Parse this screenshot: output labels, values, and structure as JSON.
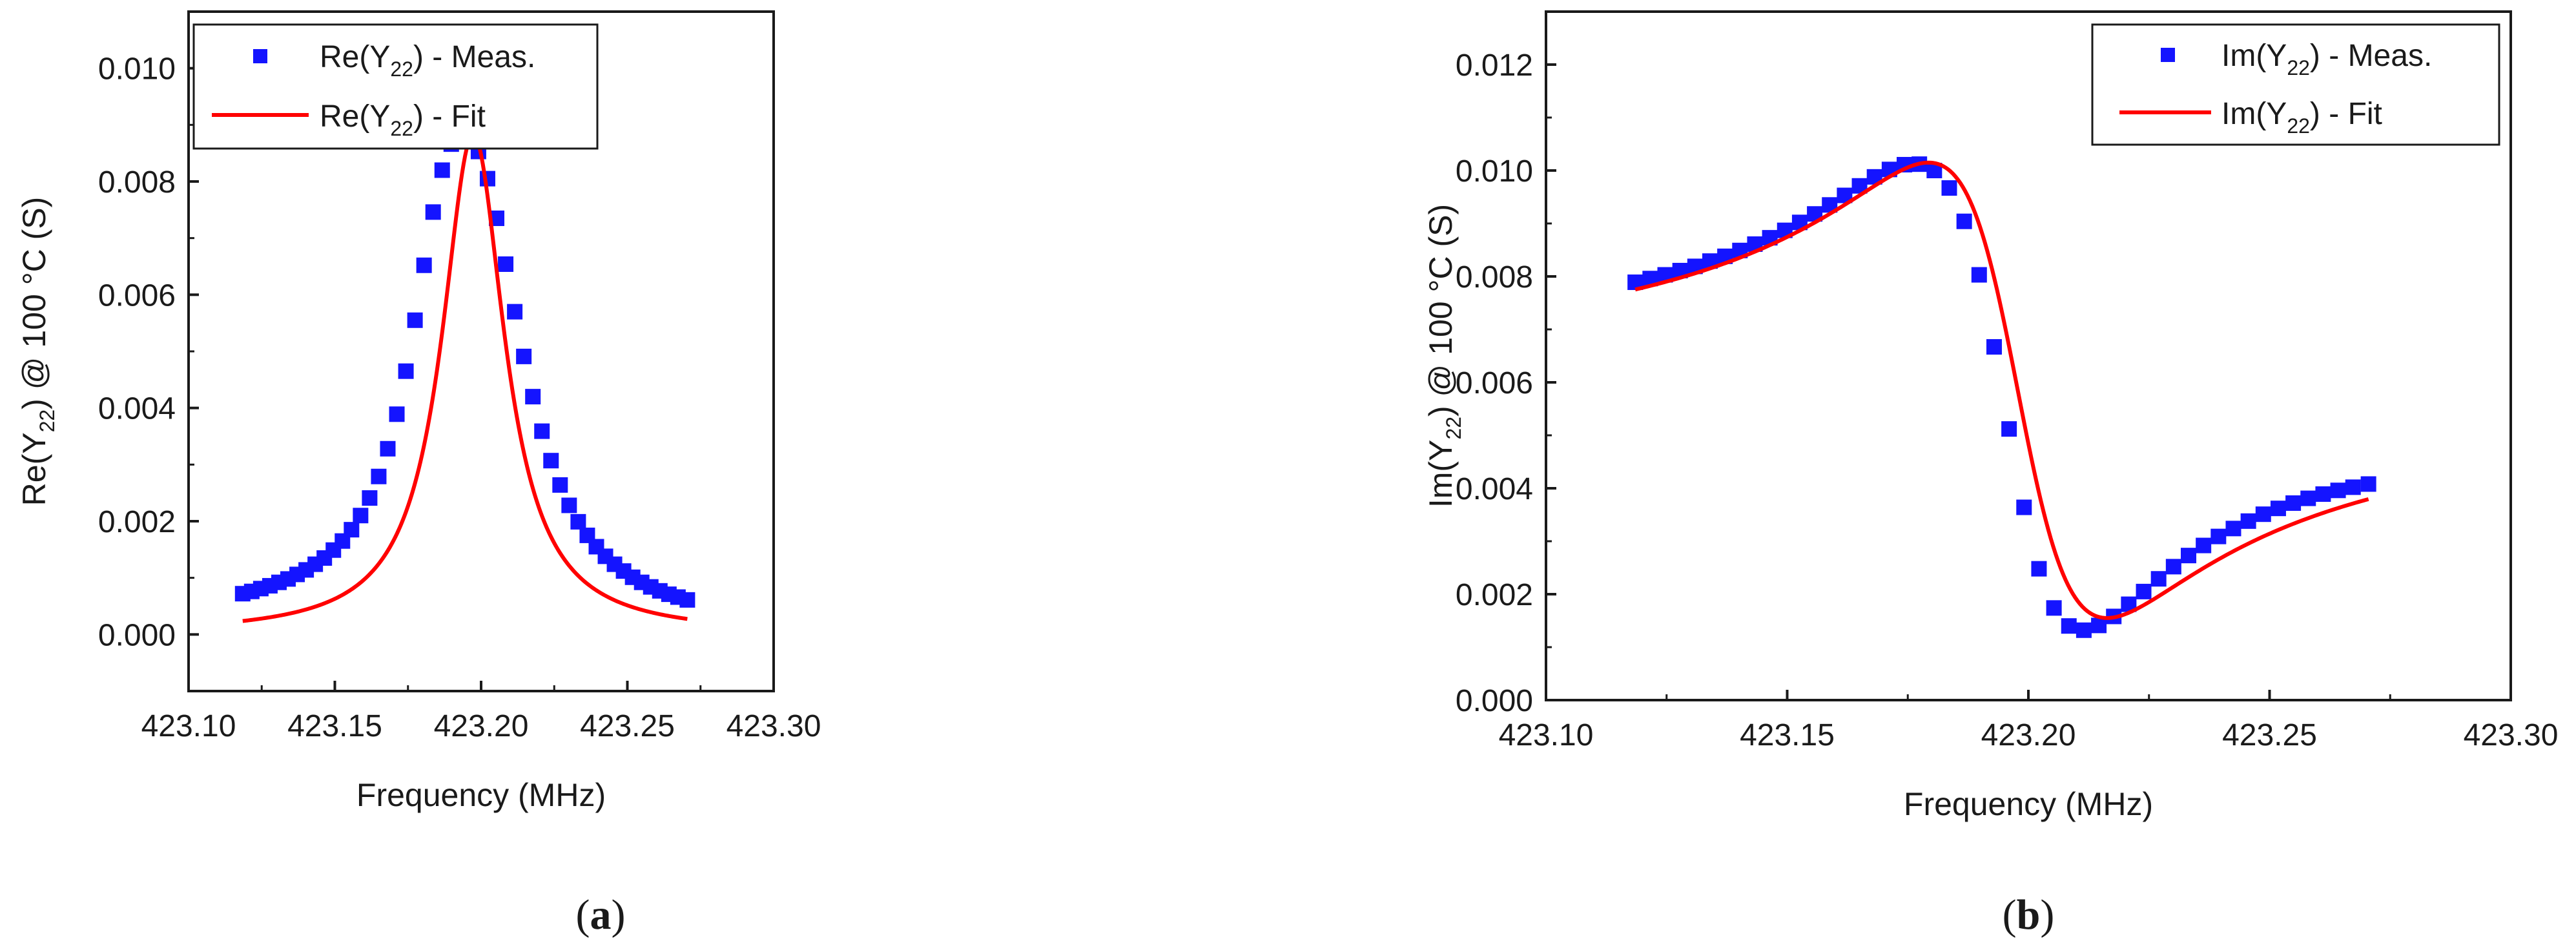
{
  "colors": {
    "measured": "#1414ff",
    "fit": "#ff0000",
    "axis": "#1a1a1a"
  },
  "chart_data": [
    {
      "type": "scatter",
      "panel_label": {
        "open": "(",
        "letter": "a",
        "close": ")"
      },
      "xlabel": "Frequency (MHz)",
      "ylabel": {
        "pre": "Re(Y",
        "sub": "22",
        "post": ") @ 100 °C (S)"
      },
      "xlim": [
        423.1,
        423.3
      ],
      "ylim": [
        -0.001,
        0.011
      ],
      "xticks": [
        423.1,
        423.15,
        423.2,
        423.25,
        423.3
      ],
      "xtick_labels": [
        "423.10",
        "423.15",
        "423.20",
        "423.25",
        "423.30"
      ],
      "yticks": [
        0.0,
        0.002,
        0.004,
        0.006,
        0.008,
        0.01
      ],
      "ytick_labels": [
        "0.000",
        "0.002",
        "0.004",
        "0.006",
        "0.008",
        "0.010"
      ],
      "legend_position": "top-left",
      "grid": false,
      "model": "lorentzian",
      "model_params": {
        "A": 0.00883,
        "f0": 423.1973,
        "gamma": 0.0131
      },
      "series": [
        {
          "name": {
            "pre": "Re(Y",
            "sub": "22",
            "post": ") - Meas."
          },
          "style": "square-markers",
          "x": [
            423.1185,
            423.1216,
            423.1247,
            423.1278,
            423.1309,
            423.134,
            423.1371,
            423.1402,
            423.1433,
            423.1464,
            423.1495,
            423.1526,
            423.1557,
            423.1588,
            423.1619,
            423.165,
            423.1681,
            423.1712,
            423.1743,
            423.1774,
            423.1805,
            423.1836,
            423.1867,
            423.1898,
            423.1929,
            423.196,
            423.1991,
            423.2022,
            423.2053,
            423.2084,
            423.2115,
            423.2146,
            423.2177,
            423.2208,
            423.2239,
            423.227,
            423.2301,
            423.2332,
            423.2363,
            423.2394,
            423.2425,
            423.2456,
            423.2487,
            423.2518,
            423.2549,
            423.258,
            423.2611,
            423.2642,
            423.2673,
            423.2705
          ],
          "y": [
            0.00072,
            0.00076,
            0.00081,
            0.00086,
            0.00092,
            0.00098,
            0.00106,
            0.00114,
            0.00124,
            0.00135,
            0.00149,
            0.00165,
            0.00185,
            0.0021,
            0.00241,
            0.00279,
            0.00328,
            0.00389,
            0.00465,
            0.00555,
            0.00652,
            0.00746,
            0.0082,
            0.00866,
            0.00881,
            0.00876,
            0.00853,
            0.00805,
            0.00735,
            0.00654,
            0.0057,
            0.00491,
            0.0042,
            0.00359,
            0.00307,
            0.00264,
            0.00228,
            0.00199,
            0.00175,
            0.00155,
            0.00138,
            0.00124,
            0.00112,
            0.00101,
            0.00092,
            0.00084,
            0.00077,
            0.00071,
            0.00066,
            0.00061
          ]
        },
        {
          "name": {
            "pre": "Re(Y",
            "sub": "22",
            "post": ") - Fit"
          },
          "style": "line",
          "x_range": [
            423.1185,
            423.2705
          ]
        }
      ]
    },
    {
      "type": "scatter",
      "panel_label": {
        "open": "(",
        "letter": "b",
        "close": ")"
      },
      "xlabel": "Frequency (MHz)",
      "ylabel": {
        "pre": "Im(Y",
        "sub": "22",
        "post": ") @ 100 °C (S)"
      },
      "xlim": [
        423.1,
        423.3
      ],
      "ylim": [
        0.0,
        0.013
      ],
      "xticks": [
        423.1,
        423.15,
        423.2,
        423.25,
        423.3
      ],
      "xtick_labels": [
        "423.10",
        "423.15",
        "423.20",
        "423.25",
        "423.30"
      ],
      "yticks": [
        0.0,
        0.002,
        0.004,
        0.006,
        0.008,
        0.01,
        0.012
      ],
      "ytick_labels": [
        "0.000",
        "0.002",
        "0.004",
        "0.006",
        "0.008",
        "0.010",
        "0.012"
      ],
      "legend_position": "top-right",
      "grid": false,
      "model": "dispersive-lorentzian",
      "model_params": {
        "offset": 0.00585,
        "A": 0.0086,
        "f0": 423.1978,
        "gamma": 0.0185
      },
      "series": [
        {
          "name": {
            "pre": "Im(Y",
            "sub": "22",
            "post": ") - Meas."
          },
          "style": "square-markers",
          "x": [
            423.1185,
            423.1216,
            423.1247,
            423.1278,
            423.1309,
            423.134,
            423.1371,
            423.1402,
            423.1433,
            423.1464,
            423.1495,
            423.1526,
            423.1557,
            423.1588,
            423.1619,
            423.165,
            423.1681,
            423.1712,
            423.1743,
            423.1774,
            423.1805,
            423.1836,
            423.1867,
            423.1898,
            423.1929,
            423.196,
            423.1991,
            423.2022,
            423.2053,
            423.2084,
            423.2115,
            423.2146,
            423.2177,
            423.2208,
            423.2239,
            423.227,
            423.2301,
            423.2332,
            423.2363,
            423.2394,
            423.2425,
            423.2456,
            423.2487,
            423.2518,
            423.2549,
            423.258,
            423.2611,
            423.2642,
            423.2673,
            423.2705
          ],
          "y": [
            0.00789,
            0.00796,
            0.00803,
            0.00811,
            0.00819,
            0.00829,
            0.00838,
            0.00849,
            0.00861,
            0.00873,
            0.00887,
            0.00902,
            0.00918,
            0.00935,
            0.00953,
            0.00971,
            0.00988,
            0.01002,
            0.01011,
            0.01012,
            0.01,
            0.00967,
            0.00904,
            0.00803,
            0.00667,
            0.00512,
            0.00364,
            0.00248,
            0.00174,
            0.0014,
            0.00132,
            0.00141,
            0.00158,
            0.00181,
            0.00205,
            0.00229,
            0.00252,
            0.00273,
            0.00292,
            0.00309,
            0.00324,
            0.00338,
            0.00351,
            0.00362,
            0.00372,
            0.00381,
            0.00389,
            0.00396,
            0.00402,
            0.00408
          ]
        },
        {
          "name": {
            "pre": "Im(Y",
            "sub": "22",
            "post": ") - Fit"
          },
          "style": "line",
          "x_range": [
            423.1185,
            423.2705
          ]
        }
      ]
    }
  ]
}
